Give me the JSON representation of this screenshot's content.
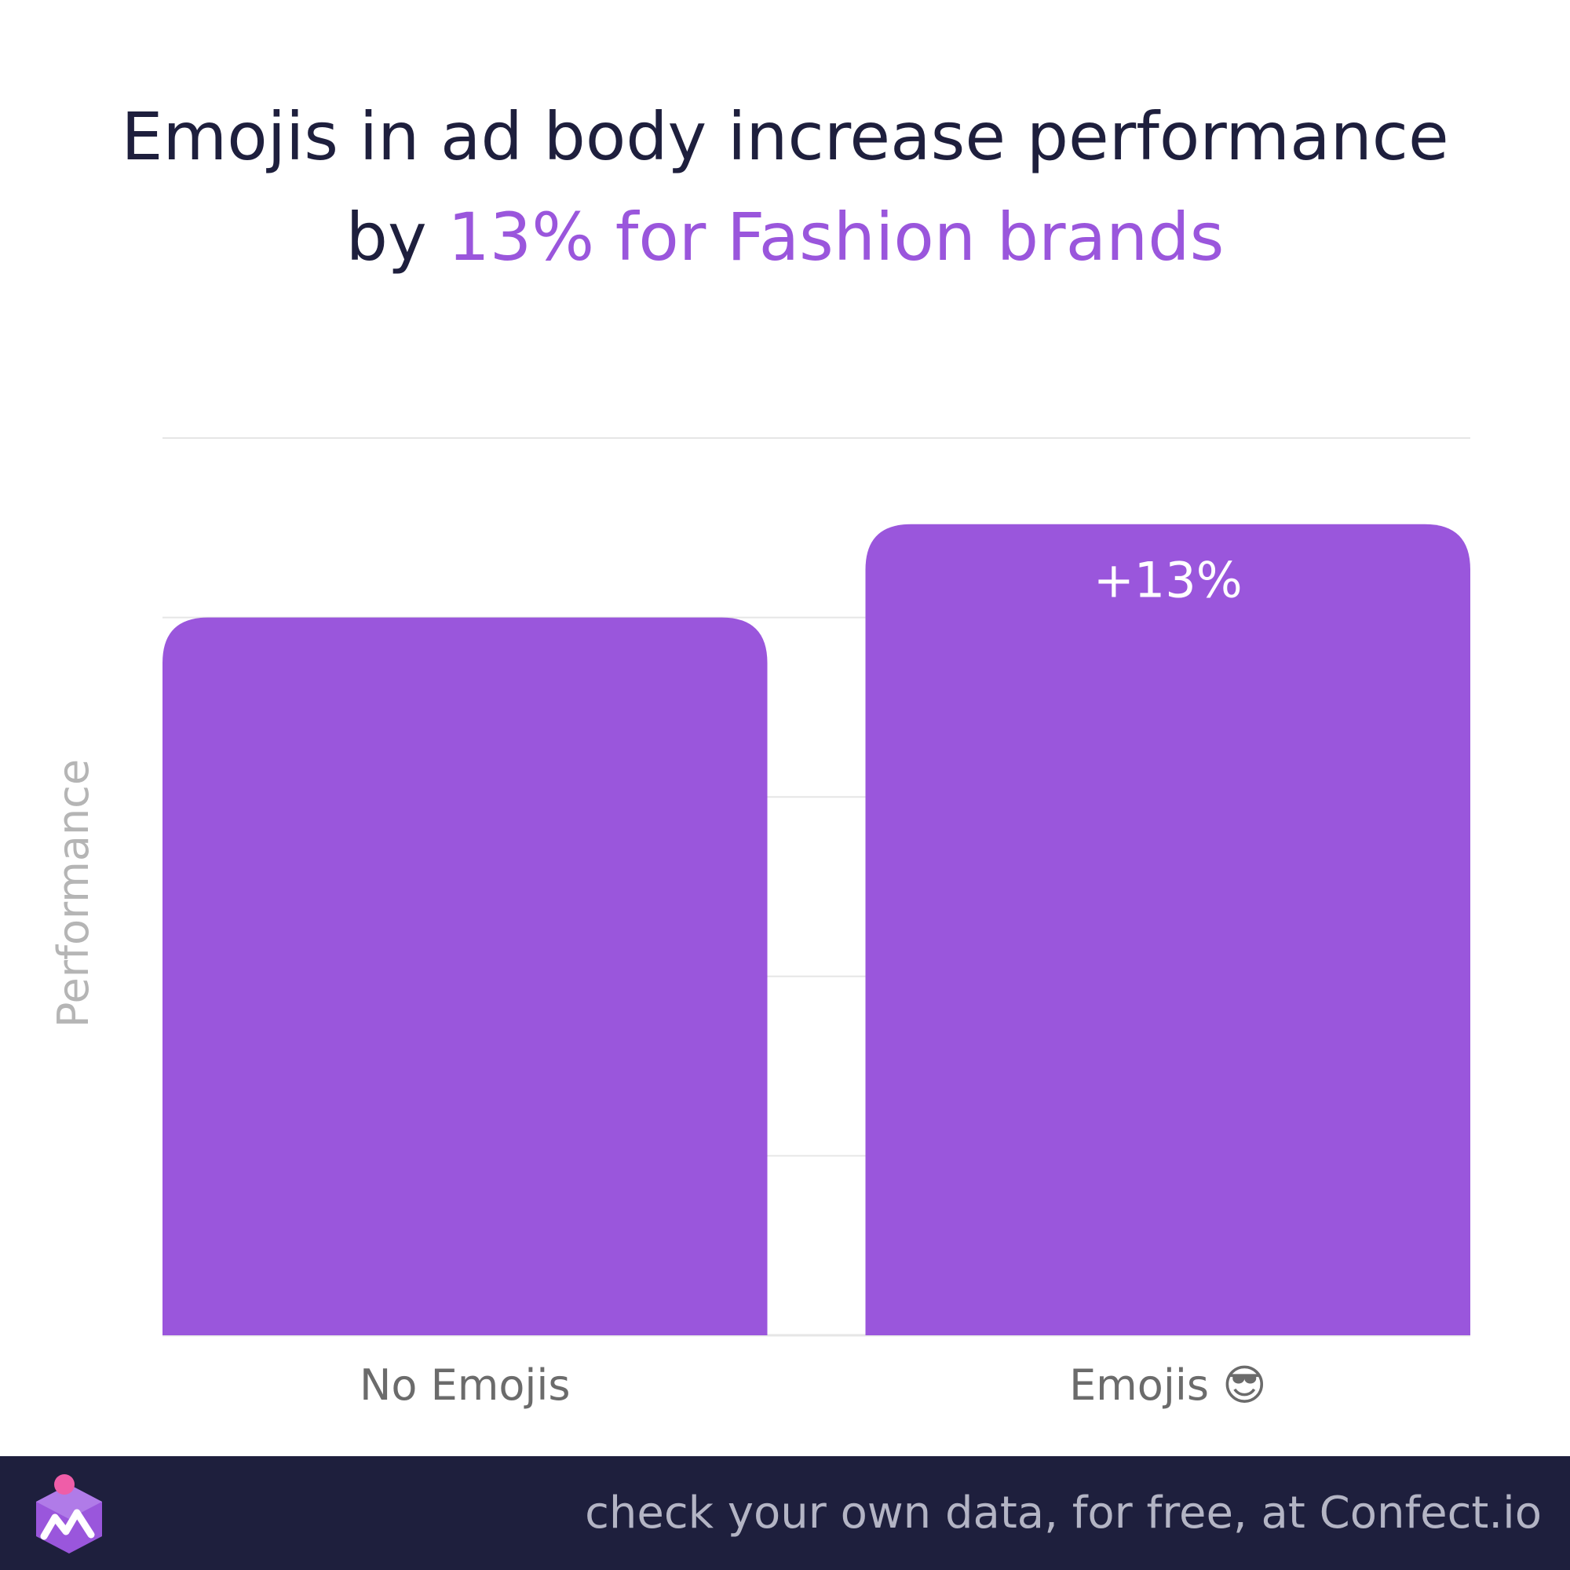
{
  "header": {
    "title_part1": "Emojis in ad body increase performance",
    "title_part2_prefix": "by ",
    "title_part2_accent": "13% for Fashion brands"
  },
  "chart_data": {
    "type": "bar",
    "categories": [
      "No Emojis",
      "Emojis 😎"
    ],
    "values": [
      100,
      113
    ],
    "data_labels": [
      "",
      "+13%"
    ],
    "ylabel": "Performance",
    "ylim": [
      0,
      125
    ],
    "grid": true,
    "legend": "none"
  },
  "footer": {
    "text": "check your own data, for free, at Confect.io",
    "logo_icon": "confect-logo-icon"
  },
  "colors": {
    "bar": "#9a56dc",
    "title": "#1e1f3d",
    "accent": "#9a56dc",
    "footer_bg": "#1e1f3d",
    "footer_text": "#b3b4c4",
    "axis_label": "#b5b5b5",
    "tick_label": "#6b6b6b",
    "grid": "#e6e6e6"
  }
}
